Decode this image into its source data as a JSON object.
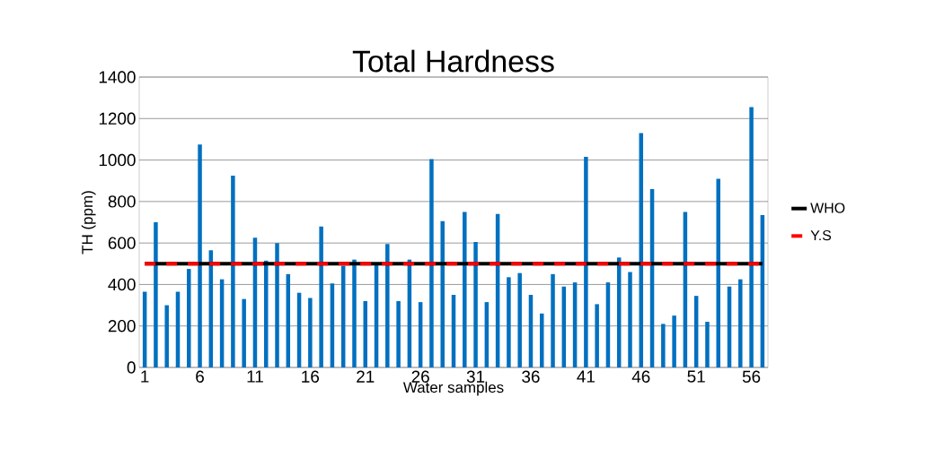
{
  "chart_data": {
    "type": "bar",
    "title": "Total Hardness",
    "xlabel": "Water samples",
    "ylabel": "TH (ppm)",
    "categories": [
      "1",
      null,
      null,
      null,
      null,
      "6",
      null,
      null,
      null,
      null,
      "11",
      null,
      null,
      null,
      null,
      "16",
      null,
      null,
      null,
      null,
      "21",
      null,
      null,
      null,
      null,
      "26",
      null,
      null,
      null,
      null,
      "31",
      null,
      null,
      null,
      null,
      "36",
      null,
      null,
      null,
      null,
      "41",
      null,
      null,
      null,
      null,
      "46",
      null,
      null,
      null,
      null,
      "51",
      null,
      null,
      null,
      null,
      "56",
      null
    ],
    "values": [
      365,
      700,
      300,
      365,
      475,
      1075,
      565,
      425,
      925,
      330,
      625,
      515,
      600,
      450,
      360,
      335,
      680,
      405,
      490,
      520,
      320,
      495,
      595,
      320,
      520,
      315,
      1005,
      705,
      350,
      750,
      605,
      315,
      740,
      435,
      455,
      350,
      260,
      450,
      390,
      410,
      1015,
      305,
      410,
      530,
      460,
      1130,
      860,
      210,
      250,
      750,
      345,
      220,
      910,
      390,
      425,
      1255,
      735
    ],
    "color": "#0070c0",
    "ylim": [
      0,
      1400
    ],
    "yticks": [
      0,
      200,
      400,
      600,
      800,
      1000,
      1200,
      1400
    ],
    "grid": "y",
    "legend": "right",
    "ref_lines": [
      {
        "axis": "y",
        "value": 500,
        "label": "WHO",
        "color": "#000000",
        "line_style": "solid"
      },
      {
        "axis": "y",
        "value": 500,
        "label": "Y.S",
        "color": "#ff0000",
        "line_style": "dashed"
      }
    ]
  }
}
